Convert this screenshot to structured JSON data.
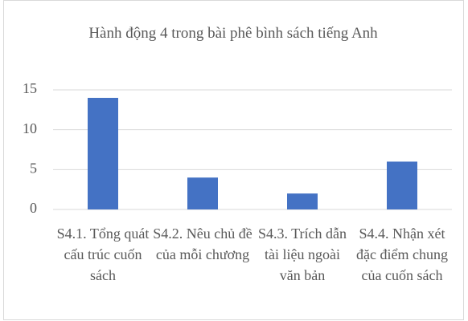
{
  "chart_data": {
    "type": "bar",
    "title": "Hành động 4 trong bài phê bình sách tiếng Anh",
    "categories": [
      "S4.1. Tổng quát cấu trúc cuốn sách",
      "S4.2. Nêu chủ đề của mỗi chương",
      "S4.3. Trích dẫn tài liệu ngoài văn bản",
      "S4.4. Nhận xét đặc điểm chung của cuốn sách"
    ],
    "values": [
      14,
      4,
      2,
      6
    ],
    "color": "#4472c4",
    "ylim": [
      0,
      15
    ],
    "yticks": [
      0,
      5,
      10,
      15
    ],
    "grid": true
  }
}
